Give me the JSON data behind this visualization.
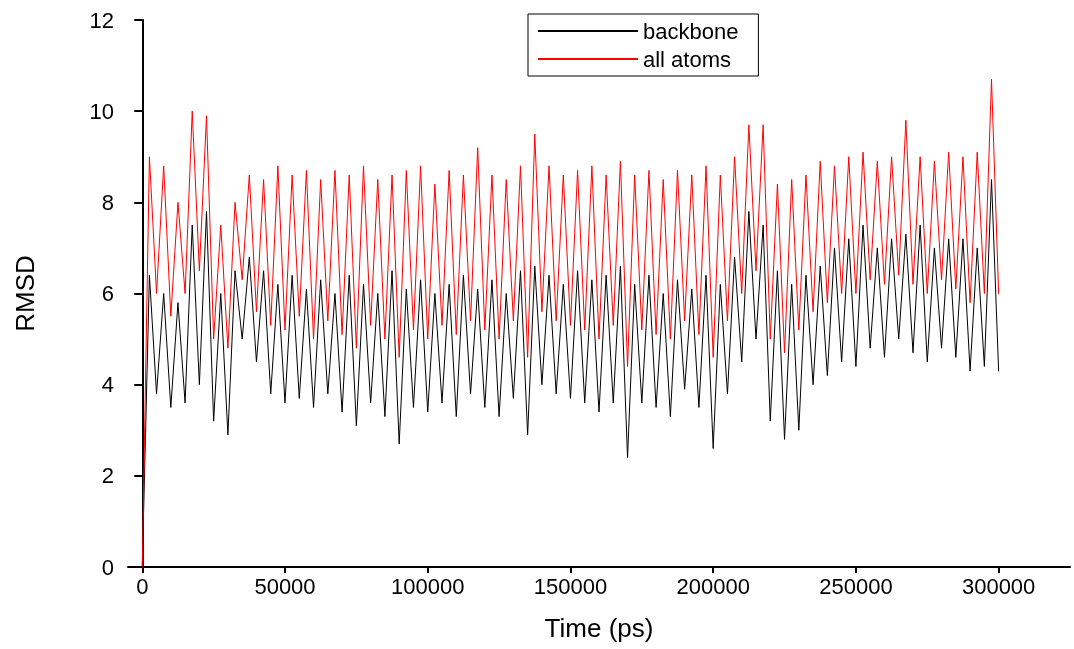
{
  "chart_data": {
    "type": "line",
    "xlabel": "Time (ps)",
    "ylabel": "RMSD",
    "x": [
      0,
      2500,
      5000,
      7500,
      10000,
      12500,
      15000,
      17500,
      20000,
      22500,
      25000,
      27500,
      30000,
      32500,
      35000,
      37500,
      40000,
      42500,
      45000,
      47500,
      50000,
      52500,
      55000,
      57500,
      60000,
      62500,
      65000,
      67500,
      70000,
      72500,
      75000,
      77500,
      80000,
      82500,
      85000,
      87500,
      90000,
      92500,
      95000,
      97500,
      100000,
      102500,
      105000,
      107500,
      110000,
      112500,
      115000,
      117500,
      120000,
      122500,
      125000,
      127500,
      130000,
      132500,
      135000,
      137500,
      140000,
      142500,
      145000,
      147500,
      150000,
      152500,
      155000,
      157500,
      160000,
      162500,
      165000,
      167500,
      170000,
      172500,
      175000,
      177500,
      180000,
      182500,
      185000,
      187500,
      190000,
      192500,
      195000,
      197500,
      200000,
      202500,
      205000,
      207500,
      210000,
      212500,
      215000,
      217500,
      220000,
      222500,
      225000,
      227500,
      230000,
      232500,
      235000,
      237500,
      240000,
      242500,
      245000,
      247500,
      250000,
      252500,
      255000,
      257500,
      260000,
      262500,
      265000,
      267500,
      270000,
      272500,
      275000,
      277500,
      280000,
      282500,
      285000,
      287500,
      290000,
      292500,
      295000,
      297500,
      300000
    ],
    "series": [
      {
        "name": "backbone",
        "color": "#000000",
        "values": [
          0,
          6.4,
          3.8,
          6.0,
          3.5,
          5.8,
          3.6,
          7.5,
          4.0,
          7.8,
          3.2,
          6.0,
          2.9,
          6.5,
          5.0,
          6.8,
          4.5,
          6.5,
          3.8,
          6.2,
          3.6,
          6.4,
          3.7,
          6.1,
          3.5,
          6.3,
          3.8,
          6.0,
          3.4,
          6.4,
          3.1,
          6.2,
          3.6,
          6.0,
          3.3,
          6.5,
          2.7,
          6.1,
          3.5,
          6.3,
          3.4,
          6.0,
          3.6,
          6.2,
          3.3,
          6.4,
          3.8,
          6.1,
          3.5,
          6.3,
          3.3,
          6.0,
          3.7,
          6.5,
          2.9,
          6.6,
          4.0,
          6.4,
          3.8,
          6.2,
          3.7,
          6.5,
          3.6,
          6.3,
          3.4,
          6.4,
          3.6,
          6.6,
          2.4,
          6.2,
          3.6,
          6.4,
          3.5,
          6.0,
          3.3,
          6.3,
          3.9,
          6.1,
          3.5,
          6.4,
          2.6,
          6.2,
          3.8,
          6.8,
          4.5,
          7.8,
          5.0,
          7.5,
          3.2,
          6.5,
          2.8,
          6.2,
          3.0,
          6.4,
          4.0,
          6.6,
          4.2,
          7.0,
          4.5,
          7.2,
          4.4,
          7.5,
          4.8,
          7.0,
          4.6,
          7.2,
          5.0,
          7.3,
          4.7,
          7.5,
          4.5,
          7.0,
          4.8,
          7.2,
          4.6,
          7.2,
          4.3,
          7.0,
          4.4,
          8.5,
          4.3
        ]
      },
      {
        "name": "all atoms",
        "color": "#ff0000",
        "values": [
          0,
          9.0,
          6.0,
          8.8,
          5.5,
          8.0,
          6.0,
          10.0,
          6.5,
          9.9,
          5.0,
          7.5,
          4.8,
          8.0,
          6.3,
          8.6,
          5.6,
          8.5,
          5.3,
          8.8,
          5.2,
          8.6,
          5.5,
          8.7,
          5.0,
          8.5,
          5.4,
          8.7,
          5.1,
          8.6,
          4.8,
          8.8,
          5.3,
          8.5,
          5.0,
          8.6,
          4.6,
          8.7,
          5.2,
          8.8,
          5.0,
          8.4,
          5.3,
          8.7,
          5.1,
          8.6,
          5.4,
          9.2,
          5.2,
          8.6,
          5.0,
          8.5,
          5.4,
          8.8,
          4.6,
          9.5,
          5.6,
          8.8,
          5.4,
          8.6,
          5.3,
          8.7,
          5.2,
          8.8,
          5.0,
          8.6,
          5.3,
          8.9,
          4.4,
          8.6,
          5.2,
          8.7,
          5.1,
          8.5,
          5.0,
          8.7,
          5.4,
          8.6,
          5.1,
          8.8,
          4.6,
          8.6,
          5.4,
          9.0,
          6.0,
          9.7,
          6.5,
          9.7,
          5.0,
          8.4,
          4.7,
          8.5,
          5.2,
          8.6,
          5.6,
          8.9,
          5.8,
          8.8,
          6.0,
          9.0,
          6.0,
          9.1,
          6.3,
          8.9,
          6.2,
          9.0,
          6.4,
          9.8,
          6.2,
          9.0,
          6.0,
          8.9,
          6.3,
          9.1,
          6.1,
          9.0,
          5.8,
          9.1,
          6.0,
          10.7,
          6.0
        ]
      }
    ],
    "xlim": [
      -5000,
      325000
    ],
    "xticks": [
      0,
      50000,
      100000,
      150000,
      200000,
      250000,
      300000
    ],
    "ylim": [
      0,
      12
    ],
    "yticks": [
      0,
      2,
      4,
      6,
      8,
      10,
      12
    ],
    "grid": false,
    "legend": "top right",
    "marker": "none",
    "line_style": "solid"
  }
}
